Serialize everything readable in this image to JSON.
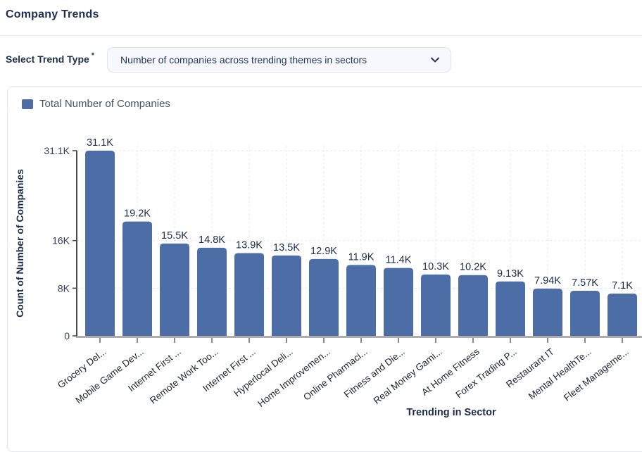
{
  "page": {
    "title": "Company Trends"
  },
  "form": {
    "label": "Select Trend Type",
    "required_mark": "*",
    "dropdown": {
      "value": "Number of companies across trending themes in sectors",
      "icon": "chevron-down-icon"
    }
  },
  "legend": {
    "label": "Total Number of Companies",
    "swatch_color": "#4d6da6"
  },
  "chart_data": {
    "type": "bar",
    "title": "",
    "legend": [
      "Total Number of Companies"
    ],
    "xlabel": "Trending in Sector",
    "ylabel": "Count of Number of Companies",
    "categories": [
      "Grocery Del...",
      "Mobile Game Dev...",
      "Internet First ...",
      "Remote Work Too...",
      "Internet First ...",
      "Hyperlocal Deli...",
      "Home Improvemen...",
      "Online Pharmaci...",
      "Fitness and Die...",
      "Real Money Gami...",
      "At Home Fitness",
      "Forex Trading P...",
      "Restaurant IT",
      "Mental HealthTe...",
      "Fleet Manageme..."
    ],
    "values": [
      31100,
      19200,
      15500,
      14800,
      13900,
      13500,
      12900,
      11900,
      11400,
      10300,
      10200,
      9130,
      7940,
      7570,
      7100
    ],
    "value_labels": [
      "31.1K",
      "19.2K",
      "15.5K",
      "14.8K",
      "13.9K",
      "13.5K",
      "12.9K",
      "11.9K",
      "11.4K",
      "10.3K",
      "10.2K",
      "9.13K",
      "7.94K",
      "7.57K",
      "7.1K"
    ],
    "yticks": [
      {
        "value": 0,
        "label": "0"
      },
      {
        "value": 8000,
        "label": "8K"
      },
      {
        "value": 16000,
        "label": "16K"
      },
      {
        "value": 31100,
        "label": "31.1K"
      }
    ],
    "ylim": [
      0,
      31100
    ],
    "bar_color": "#4d6da6",
    "grid": "dashed",
    "legend_position": "top-left"
  }
}
